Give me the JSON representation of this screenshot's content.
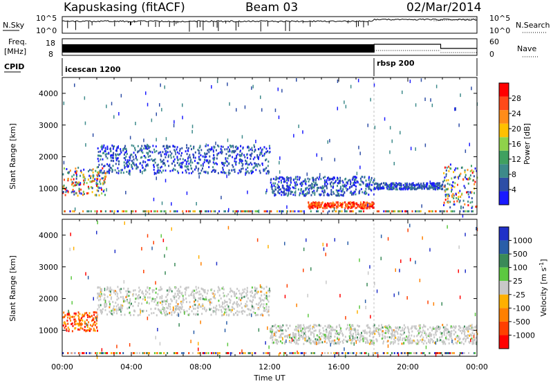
{
  "header": {
    "station": "Kapuskasing (fitACF)",
    "beam": "Beam 03",
    "date": "02/Mar/2014"
  },
  "strip": {
    "nsky_label": "N.Sky",
    "nsky_ticks": [
      "10^5",
      "10^0"
    ],
    "nsearch_label": "N.Search",
    "nsearch_ticks": [
      "10^5",
      "10^0"
    ],
    "freq_label_1": "Freq.",
    "freq_label_2": "[MHz]",
    "freq_ticks": [
      "18",
      "8"
    ],
    "nave_label": "Nave",
    "nave_ticks": [
      "60",
      "0"
    ],
    "cpid_label": "CPID",
    "cpid_segments": [
      {
        "name": "icescan 1200",
        "start_h": 0,
        "end_h": 18.05
      },
      {
        "name": "rbsp 200",
        "start_h": 18.05,
        "end_h": 24
      }
    ]
  },
  "colors": {
    "power_scale": [
      "#1a1aff",
      "#2e4ea6",
      "#3d8a8a",
      "#40a060",
      "#8fd24a",
      "#ffc000",
      "#ff8c1a",
      "#ff4a1a",
      "#ff0000"
    ],
    "velocity_scale": [
      "#2030c8",
      "#2a5ea8",
      "#3a8a58",
      "#5cc840",
      "#c8c8c8",
      "#ffb000",
      "#ff8000",
      "#ff4000",
      "#ff0000"
    ]
  },
  "chart_data": [
    {
      "type": "heatmap",
      "panel": "power",
      "xlabel": "Time UT",
      "ylabel": "Slant Range [km]",
      "x_ticks": [
        "00:00",
        "04:00",
        "08:00",
        "12:00",
        "16:00",
        "20:00",
        "00:00"
      ],
      "xlim": [
        0,
        24
      ],
      "y_ticks": [
        "1000",
        "2000",
        "3000",
        "4000"
      ],
      "ylim": [
        180,
        4500
      ],
      "colorbar_label": "Power [dB]",
      "colorbar_ticks": [
        "4",
        "8",
        "12",
        "16",
        "20",
        "24",
        "28"
      ],
      "colorbar_range": [
        0,
        32
      ],
      "dominant_echoes": [
        {
          "t_start": 0,
          "t_end": 2.5,
          "r_low": 800,
          "r_high": 1700,
          "level": "mixed"
        },
        {
          "t_start": 2,
          "t_end": 12,
          "r_low": 1500,
          "r_high": 2400,
          "level": "low"
        },
        {
          "t_start": 12,
          "t_end": 18,
          "r_low": 800,
          "r_high": 1400,
          "level": "low"
        },
        {
          "t_start": 14.2,
          "t_end": 18,
          "r_low": 400,
          "r_high": 600,
          "level": "high"
        },
        {
          "t_start": 18,
          "t_end": 22,
          "r_low": 1000,
          "r_high": 1200,
          "level": "low"
        },
        {
          "t_start": 22,
          "t_end": 24,
          "r_low": 400,
          "r_high": 1800,
          "level": "mixed"
        }
      ]
    },
    {
      "type": "heatmap",
      "panel": "velocity",
      "xlabel": "Time UT",
      "ylabel": "Slant Range [km]",
      "x_ticks": [
        "00:00",
        "04:00",
        "08:00",
        "12:00",
        "16:00",
        "20:00",
        "00:00"
      ],
      "xlim": [
        0,
        24
      ],
      "y_ticks": [
        "1000",
        "2000",
        "3000",
        "4000"
      ],
      "ylim": [
        180,
        4500
      ],
      "colorbar_label": "Velocity [m s^-1]",
      "colorbar_ticks": [
        "1000",
        "500",
        "100",
        "25",
        "-25",
        "-100",
        "-500",
        "-1000"
      ],
      "dominant_echoes": [
        {
          "t_start": 0,
          "t_end": 2,
          "r_low": 1000,
          "r_high": 1600,
          "velocity": "negative"
        },
        {
          "t_start": 2,
          "t_end": 12,
          "r_low": 1500,
          "r_high": 2400,
          "velocity": "near zero"
        },
        {
          "t_start": 12,
          "t_end": 24,
          "r_low": 600,
          "r_high": 1200,
          "velocity": "near zero"
        }
      ]
    }
  ]
}
